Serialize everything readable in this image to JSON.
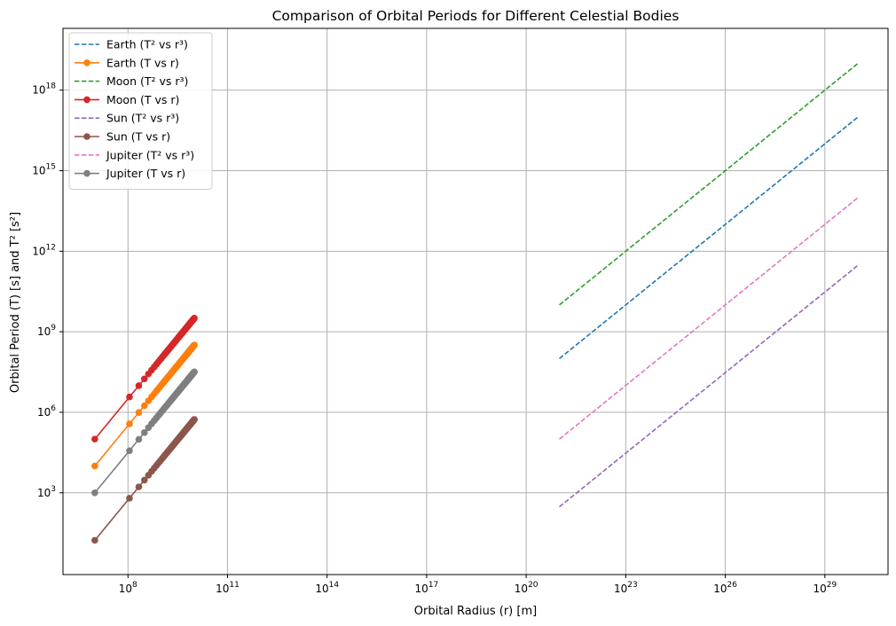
{
  "chart_data": {
    "type": "line",
    "title": "Comparison of Orbital Periods for Different Celestial Bodies",
    "xlabel": "Orbital Radius (r) [m]",
    "ylabel": "Orbital Period (T) [s] and T² [s²]",
    "xscale": "log",
    "yscale": "log",
    "xlim": [
      1100000.0,
      8e+30
    ],
    "ylim": [
      0.9,
      2e+20
    ],
    "x_ticks": [
      {
        "value": 100000000.0,
        "base": "10",
        "exp": "8"
      },
      {
        "value": 100000000000.0,
        "base": "10",
        "exp": "11"
      },
      {
        "value": 100000000000000.0,
        "base": "10",
        "exp": "14"
      },
      {
        "value": 1e+17,
        "base": "10",
        "exp": "17"
      },
      {
        "value": 1e+20,
        "base": "10",
        "exp": "20"
      },
      {
        "value": 1e+23,
        "base": "10",
        "exp": "23"
      },
      {
        "value": 1e+26,
        "base": "10",
        "exp": "26"
      },
      {
        "value": 1e+29,
        "base": "10",
        "exp": "29"
      }
    ],
    "y_ticks": [
      {
        "value": 1000.0,
        "base": "10",
        "exp": "3"
      },
      {
        "value": 1000000.0,
        "base": "10",
        "exp": "6"
      },
      {
        "value": 1000000000.0,
        "base": "10",
        "exp": "9"
      },
      {
        "value": 1000000000000.0,
        "base": "10",
        "exp": "12"
      },
      {
        "value": 1000000000000000.0,
        "base": "10",
        "exp": "15"
      },
      {
        "value": 1e+18,
        "base": "10",
        "exp": "18"
      }
    ],
    "grid": true,
    "legend_position": "top-left",
    "series": [
      {
        "name": "Earth (T² vs r³)",
        "style": "dashed",
        "color": "#1f77b4",
        "x": [
          1e+21,
          1e+30
        ],
        "y": [
          100000000.0,
          1e+17
        ]
      },
      {
        "name": "Earth (T vs r)",
        "style": "solid-marker",
        "color": "#ff7f0e",
        "x_range": [
          10000000.0,
          10000000000.0
        ],
        "n_points": 100,
        "y_range": [
          10000.0,
          320000000.0
        ]
      },
      {
        "name": "Moon (T² vs r³)",
        "style": "dashed",
        "color": "#2ca02c",
        "x": [
          1e+21,
          1e+30
        ],
        "y": [
          10000000000.0,
          1e+19
        ]
      },
      {
        "name": "Moon (T vs r)",
        "style": "solid-marker",
        "color": "#d62728",
        "x_range": [
          10000000.0,
          10000000000.0
        ],
        "n_points": 100,
        "y_range": [
          100000.0,
          3200000000.0
        ]
      },
      {
        "name": "Sun (T² vs r³)",
        "style": "dashed",
        "color": "#9467bd",
        "x": [
          1e+21,
          1e+30
        ],
        "y": [
          300.0,
          300000000000.0
        ]
      },
      {
        "name": "Sun (T vs r)",
        "style": "solid-marker",
        "color": "#8c564b",
        "x_range": [
          10000000.0,
          10000000000.0
        ],
        "n_points": 100,
        "y_range": [
          17,
          540000.0
        ]
      },
      {
        "name": "Jupiter (T² vs r³)",
        "style": "dashed",
        "color": "#e377c2",
        "x": [
          1e+21,
          1e+30
        ],
        "y": [
          100000.0,
          100000000000000.0
        ]
      },
      {
        "name": "Jupiter (T vs r)",
        "style": "solid-marker",
        "color": "#7f7f7f",
        "x_range": [
          10000000.0,
          10000000000.0
        ],
        "n_points": 100,
        "y_range": [
          1000.0,
          32000000.0
        ]
      }
    ]
  }
}
